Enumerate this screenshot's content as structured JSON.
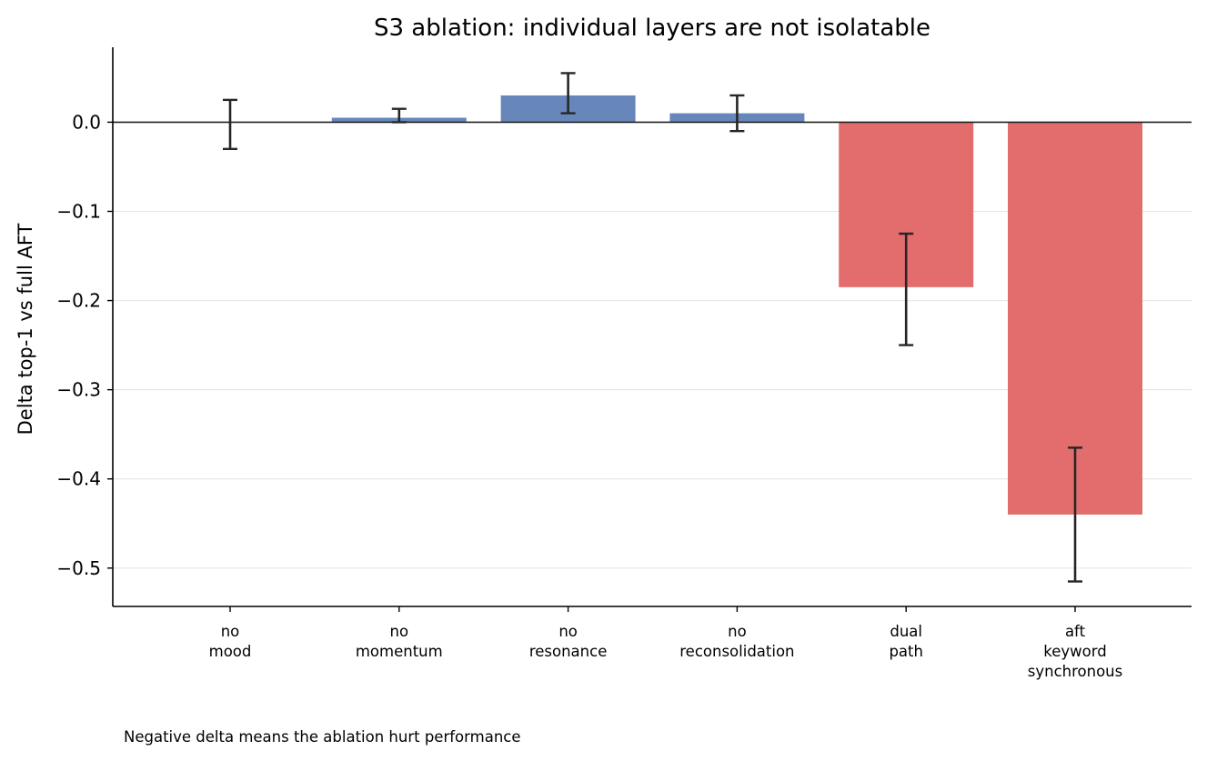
{
  "chart_data": {
    "type": "bar",
    "title": "S3 ablation: individual layers are not isolatable",
    "xlabel": "",
    "ylabel": "Delta top-1 vs full AFT",
    "categories": [
      [
        "no",
        "mood"
      ],
      [
        "no",
        "momentum"
      ],
      [
        "no",
        "resonance"
      ],
      [
        "no",
        "reconsolidation"
      ],
      [
        "dual",
        "path"
      ],
      [
        "aft",
        "keyword",
        "synchronous"
      ]
    ],
    "values": [
      0.0,
      0.005,
      0.03,
      0.01,
      -0.185,
      -0.44
    ],
    "error_low": [
      -0.03,
      0.0,
      0.01,
      -0.01,
      -0.25,
      -0.515
    ],
    "error_high": [
      0.025,
      0.015,
      0.055,
      0.03,
      -0.125,
      -0.365
    ],
    "ylim": [
      -0.543,
      0.084
    ],
    "yticks": [
      0.0,
      -0.1,
      -0.2,
      -0.3,
      -0.4,
      -0.5
    ],
    "ytick_labels": [
      "0.0",
      "−0.1",
      "−0.2",
      "−0.3",
      "−0.4",
      "−0.5"
    ],
    "grid": "horizontal",
    "zero_line": true,
    "colors": {
      "positive": "#6787bb",
      "negative": "#e36d6d",
      "error_bar": "#262626",
      "grid": "#e8e8e8",
      "axis": "#000000"
    },
    "annotation": "Negative delta means the ablation hurt performance"
  }
}
